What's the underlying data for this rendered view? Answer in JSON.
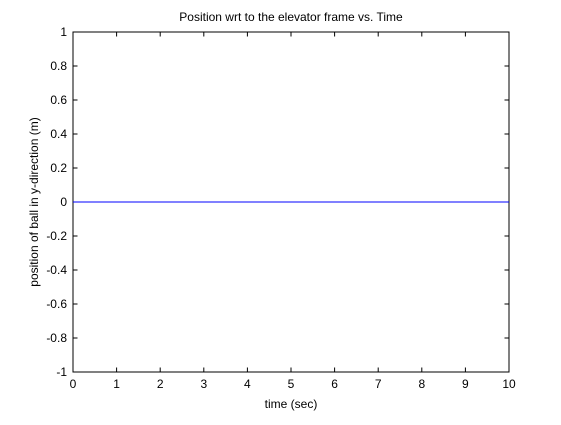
{
  "chart_data": {
    "type": "line",
    "title": "Position wrt to the elevator frame vs. Time",
    "xlabel": "time (sec)",
    "ylabel": "position of ball in y-direction (m)",
    "xlim": [
      0,
      10
    ],
    "ylim": [
      -1,
      1
    ],
    "xticks": [
      0,
      1,
      2,
      3,
      4,
      5,
      6,
      7,
      8,
      9,
      10
    ],
    "xtick_labels": [
      "0",
      "1",
      "2",
      "3",
      "4",
      "5",
      "6",
      "7",
      "8",
      "9",
      "10"
    ],
    "yticks": [
      -1,
      -0.8,
      -0.6,
      -0.4,
      -0.2,
      0,
      0.2,
      0.4,
      0.6,
      0.8,
      1
    ],
    "ytick_labels": [
      "-1",
      "-0.8",
      "-0.6",
      "-0.4",
      "-0.2",
      "0",
      "0.2",
      "0.4",
      "0.6",
      "0.8",
      "1"
    ],
    "grid": false,
    "series": [
      {
        "color": "#0000ff",
        "x": [
          0,
          10
        ],
        "y": [
          0,
          0
        ]
      }
    ]
  }
}
